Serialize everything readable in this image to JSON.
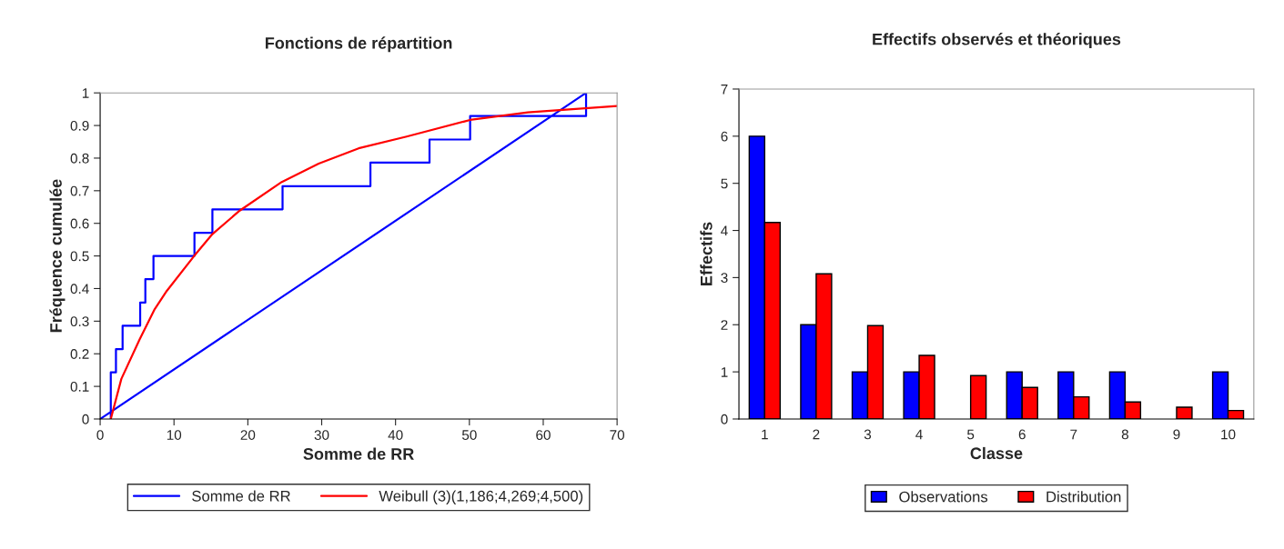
{
  "chart_data": [
    {
      "type": "line",
      "title": "Fonctions de répartition",
      "xlabel": "Somme de RR",
      "ylabel": "Fréquence cumulée",
      "xlim": [
        0,
        70
      ],
      "xticks": [
        0,
        10,
        20,
        30,
        40,
        50,
        60,
        70
      ],
      "ylim": [
        0,
        1
      ],
      "yticks": [
        0,
        0.1,
        0.2,
        0.3,
        0.4,
        0.5,
        0.6,
        0.7,
        0.8,
        0.9,
        1
      ],
      "legend": "bottom",
      "series": [
        {
          "name": "Somme de RR",
          "color": "#0000ff",
          "x": [
            1.44,
            1.44,
            2.14,
            2.14,
            3.04,
            3.04,
            5.42,
            5.42,
            6.12,
            6.12,
            7.22,
            7.22,
            12.77,
            12.77,
            15.2,
            15.2,
            24.7,
            24.7,
            36.6,
            36.6,
            44.6,
            44.6,
            50.1,
            50.1,
            65.8,
            65.8,
            0
          ],
          "values": [
            0,
            0.143,
            0.143,
            0.214,
            0.214,
            0.286,
            0.286,
            0.357,
            0.357,
            0.429,
            0.429,
            0.5,
            0.5,
            0.571,
            0.571,
            0.643,
            0.643,
            0.714,
            0.714,
            0.786,
            0.786,
            0.857,
            0.857,
            0.929,
            0.929,
            1,
            0
          ]
        },
        {
          "name": "Weibull (3)(1,186;4,269;4,500)",
          "color": "#ff0000",
          "x": [
            1.44,
            2.87,
            5.34,
            7.39,
            9.03,
            12.73,
            15.2,
            18.9,
            24.6,
            29.6,
            35,
            41.5,
            50.1,
            57.9,
            70
          ],
          "values": [
            0,
            0.123,
            0.244,
            0.337,
            0.393,
            0.5,
            0.567,
            0.639,
            0.727,
            0.783,
            0.83,
            0.866,
            0.917,
            0.94,
            0.96
          ]
        }
      ]
    },
    {
      "type": "bar",
      "title": "Effectifs observés et théoriques",
      "xlabel": "Classe",
      "ylabel": "Effectifs",
      "categories": [
        "1",
        "2",
        "3",
        "4",
        "5",
        "6",
        "7",
        "8",
        "9",
        "10"
      ],
      "ylim": [
        0,
        7
      ],
      "yticks": [
        0,
        1,
        2,
        3,
        4,
        5,
        6,
        7
      ],
      "legend": "bottom",
      "series": [
        {
          "name": "Observations",
          "color": "#0000ff",
          "values": [
            6,
            2,
            1,
            1,
            0,
            1,
            1,
            1,
            0,
            1
          ]
        },
        {
          "name": "Distribution",
          "color": "#ff0000",
          "values": [
            4.17,
            3.08,
            1.98,
            1.35,
            0.92,
            0.67,
            0.47,
            0.36,
            0.25,
            0.18
          ]
        }
      ]
    }
  ]
}
